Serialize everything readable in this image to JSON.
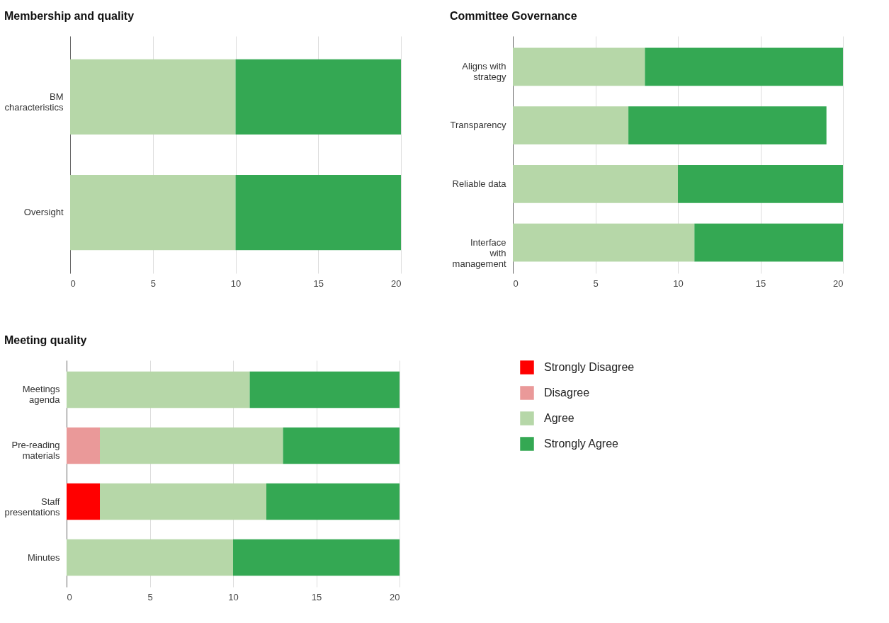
{
  "chart_data": [
    {
      "type": "bar",
      "orientation": "horizontal",
      "stacked": true,
      "title": "Membership and quality",
      "categories": [
        "BM characteristics",
        "Oversight"
      ],
      "series": [
        {
          "color": "#b6d7a8",
          "values": [
            10,
            10
          ]
        },
        {
          "color": "#34a853",
          "values": [
            10,
            10
          ]
        }
      ],
      "xlim": [
        0,
        20
      ],
      "xticks": [
        0,
        5,
        10,
        15,
        20
      ],
      "grid": "x",
      "legend": false
    },
    {
      "type": "bar",
      "orientation": "horizontal",
      "stacked": true,
      "title": "Committee Governance",
      "categories": [
        "Aligns with strategy",
        "Transparency",
        "Reliable data",
        "Interface with management"
      ],
      "series": [
        {
          "color": "#b6d7a8",
          "values": [
            8,
            7,
            10,
            11
          ]
        },
        {
          "color": "#34a853",
          "values": [
            12,
            12,
            10,
            9
          ]
        }
      ],
      "xlim": [
        0,
        20
      ],
      "xticks": [
        0,
        5,
        10,
        15,
        20
      ],
      "grid": "x",
      "legend": false
    },
    {
      "type": "bar",
      "orientation": "horizontal",
      "stacked": true,
      "title": "Meeting quality",
      "categories": [
        "Meetings agenda",
        "Pre-reading materials",
        "Staff presentations",
        "Minutes"
      ],
      "series": [
        {
          "name": "Strongly Disagree",
          "color": "#ff0000",
          "values": [
            0,
            0,
            2,
            0
          ]
        },
        {
          "name": "Disagree",
          "color": "#ea9999",
          "values": [
            0,
            2,
            0,
            0
          ]
        },
        {
          "name": "Agree",
          "color": "#b6d7a8",
          "values": [
            11,
            11,
            10,
            10
          ]
        },
        {
          "name": "Strongly Agree",
          "color": "#34a853",
          "values": [
            9,
            7,
            8,
            10
          ]
        }
      ],
      "xlim": [
        0,
        20
      ],
      "xticks": [
        0,
        5,
        10,
        15,
        20
      ],
      "grid": "x",
      "legend": "right"
    }
  ]
}
